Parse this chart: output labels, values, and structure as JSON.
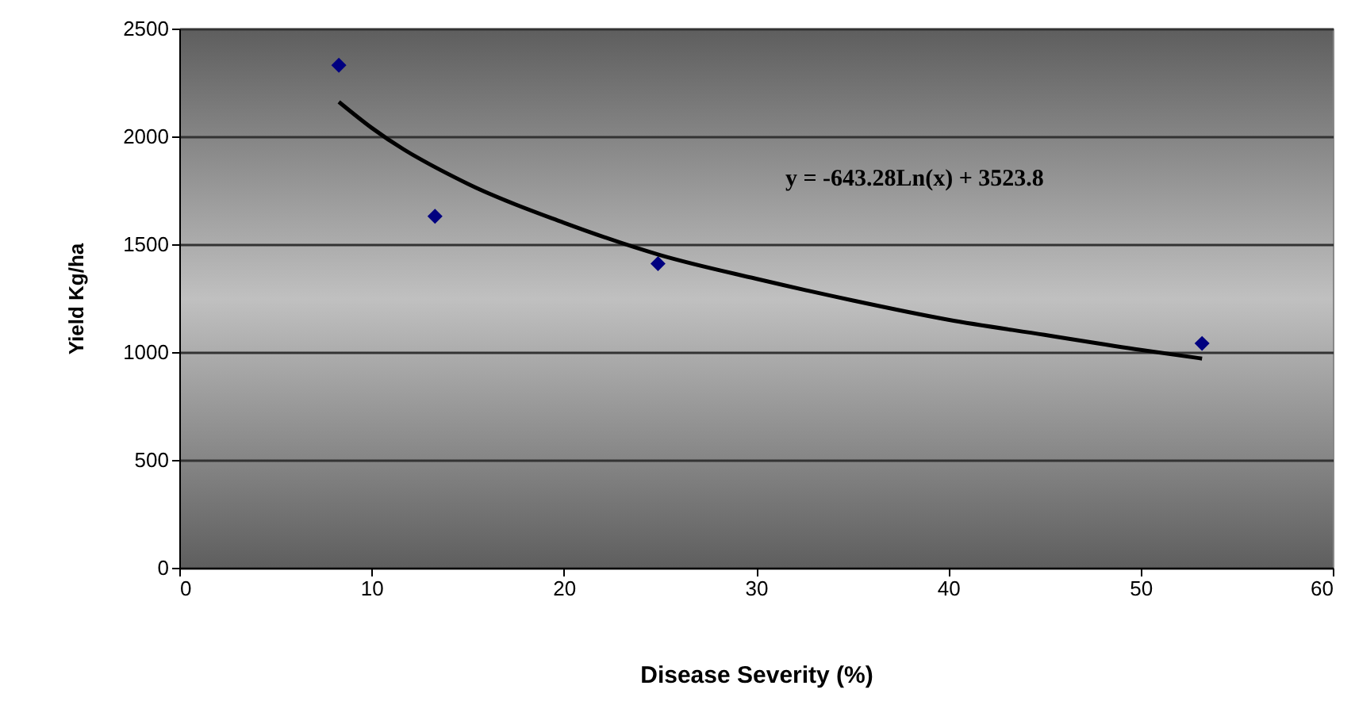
{
  "chart_data": {
    "type": "scatter",
    "xlabel": "Disease Severity (%)",
    "ylabel": "Yield Kg/ha",
    "annotations": [
      "y = -643.28Ln(x) + 3523.8"
    ],
    "series": [
      {
        "color": "#000080",
        "marker": "diamond",
        "x": [
          8.3,
          13.3,
          24.9,
          53.2
        ],
        "values": [
          2330,
          1630,
          1410,
          1040
        ]
      },
      {
        "type": "line",
        "marker": "none",
        "color": "#000000",
        "x": [
          8.3,
          10,
          15,
          20,
          25,
          30,
          35,
          40,
          45,
          50,
          53.2
        ],
        "values": [
          2160,
          2040,
          1780,
          1600,
          1450,
          1340,
          1240,
          1150,
          1080,
          1010,
          970
        ]
      }
    ],
    "xlim": [
      0,
      60
    ],
    "xticks": [
      0,
      10,
      20,
      30,
      40,
      50,
      60
    ],
    "ylim": [
      0,
      2500
    ],
    "yticks": [
      0,
      500,
      1000,
      1500,
      2000,
      2500
    ],
    "grid": "y"
  }
}
